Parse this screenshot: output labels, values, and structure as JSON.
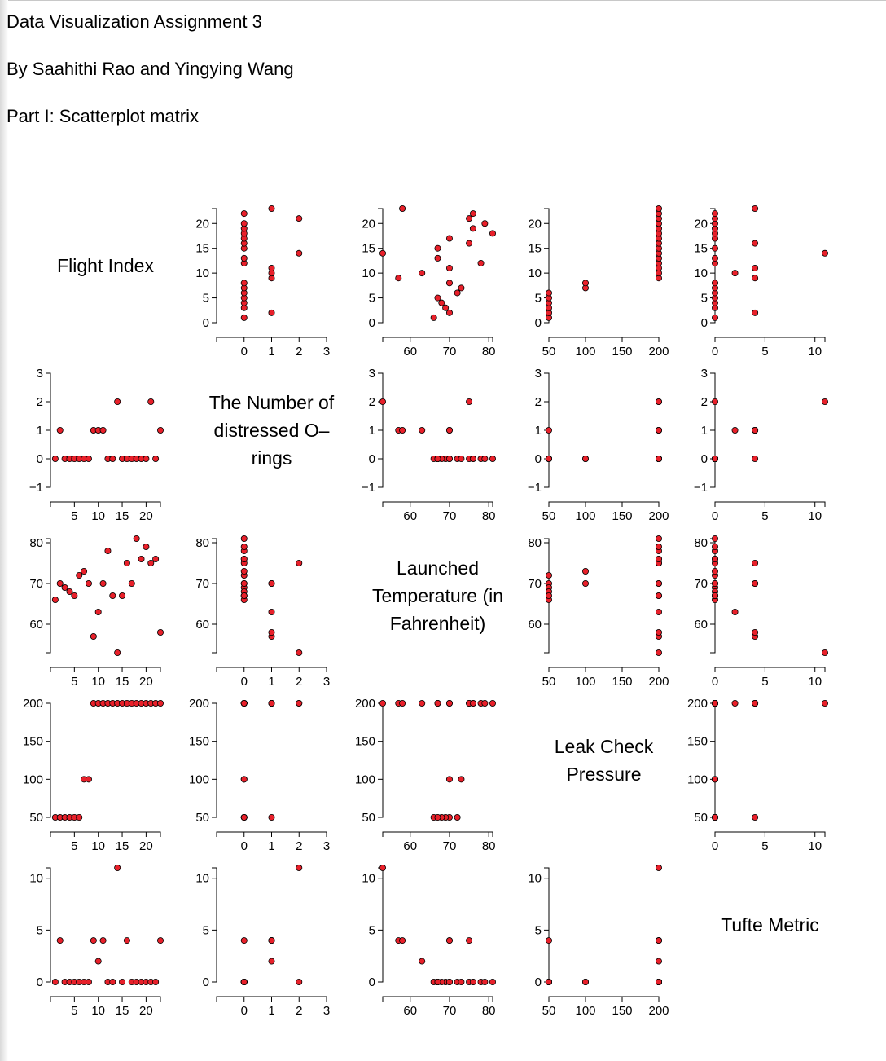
{
  "page": {
    "title": "Data Visualization Assignment 3",
    "authors": "By Saahithi Rao and Yingying Wang",
    "part": "Part I: Scatterplot matrix"
  },
  "chart_data": {
    "type": "scatter",
    "title": "",
    "marker_color": "#e8202a",
    "variables": [
      {
        "key": "flight",
        "label": "Flight Index",
        "label_lines": [
          "Flight Index"
        ],
        "domain": [
          0,
          23
        ],
        "ticks": [
          0,
          5,
          10,
          15,
          20
        ],
        "x_ticks": [
          5,
          10,
          15,
          20
        ]
      },
      {
        "key": "orings",
        "label": "The Number of distressed O-rings",
        "label_lines": [
          "The Number of",
          "distressed O–",
          "rings"
        ],
        "domain": [
          -1,
          3
        ],
        "ticks": [
          -1,
          0,
          1,
          2,
          3
        ],
        "x_ticks": [
          0,
          1,
          2,
          3
        ]
      },
      {
        "key": "temp",
        "label": "Launched Temperature (in Fahrenheit)",
        "label_lines": [
          "Launched",
          "Temperature (in",
          "Fahrenheit)"
        ],
        "domain": [
          53,
          81
        ],
        "ticks": [
          60,
          70,
          80
        ],
        "x_ticks": [
          60,
          70,
          80
        ]
      },
      {
        "key": "pressure",
        "label": "Leak Check Pressure",
        "label_lines": [
          "Leak Check",
          "Pressure"
        ],
        "domain": [
          50,
          200
        ],
        "ticks": [
          50,
          100,
          150,
          200
        ],
        "x_ticks": [
          50,
          100,
          150,
          200
        ]
      },
      {
        "key": "tufte",
        "label": "Tufte Metric",
        "label_lines": [
          "Tufte Metric"
        ],
        "domain": [
          0,
          11
        ],
        "ticks": [
          0,
          5,
          10
        ],
        "x_ticks": [
          0,
          5,
          10
        ]
      }
    ],
    "records": [
      {
        "flight": 1,
        "orings": 0,
        "temp": 66,
        "pressure": 50,
        "tufte": 0
      },
      {
        "flight": 2,
        "orings": 1,
        "temp": 70,
        "pressure": 50,
        "tufte": 4
      },
      {
        "flight": 3,
        "orings": 0,
        "temp": 69,
        "pressure": 50,
        "tufte": 0
      },
      {
        "flight": 4,
        "orings": 0,
        "temp": 68,
        "pressure": 50,
        "tufte": 0
      },
      {
        "flight": 5,
        "orings": 0,
        "temp": 67,
        "pressure": 50,
        "tufte": 0
      },
      {
        "flight": 6,
        "orings": 0,
        "temp": 72,
        "pressure": 50,
        "tufte": 0
      },
      {
        "flight": 7,
        "orings": 0,
        "temp": 73,
        "pressure": 100,
        "tufte": 0
      },
      {
        "flight": 8,
        "orings": 0,
        "temp": 70,
        "pressure": 100,
        "tufte": 0
      },
      {
        "flight": 9,
        "orings": 1,
        "temp": 57,
        "pressure": 200,
        "tufte": 4
      },
      {
        "flight": 10,
        "orings": 1,
        "temp": 63,
        "pressure": 200,
        "tufte": 2
      },
      {
        "flight": 11,
        "orings": 1,
        "temp": 70,
        "pressure": 200,
        "tufte": 4
      },
      {
        "flight": 12,
        "orings": 0,
        "temp": 78,
        "pressure": 200,
        "tufte": 0
      },
      {
        "flight": 13,
        "orings": 0,
        "temp": 67,
        "pressure": 200,
        "tufte": 0
      },
      {
        "flight": 14,
        "orings": 2,
        "temp": 53,
        "pressure": 200,
        "tufte": 11
      },
      {
        "flight": 15,
        "orings": 0,
        "temp": 67,
        "pressure": 200,
        "tufte": 0
      },
      {
        "flight": 16,
        "orings": 0,
        "temp": 75,
        "pressure": 200,
        "tufte": 4
      },
      {
        "flight": 17,
        "orings": 0,
        "temp": 70,
        "pressure": 200,
        "tufte": 0
      },
      {
        "flight": 18,
        "orings": 0,
        "temp": 81,
        "pressure": 200,
        "tufte": 0
      },
      {
        "flight": 19,
        "orings": 0,
        "temp": 76,
        "pressure": 200,
        "tufte": 0
      },
      {
        "flight": 20,
        "orings": 0,
        "temp": 79,
        "pressure": 200,
        "tufte": 0
      },
      {
        "flight": 21,
        "orings": 2,
        "temp": 75,
        "pressure": 200,
        "tufte": 0
      },
      {
        "flight": 22,
        "orings": 0,
        "temp": 76,
        "pressure": 200,
        "tufte": 0
      },
      {
        "flight": 23,
        "orings": 1,
        "temp": 58,
        "pressure": 200,
        "tufte": 4
      }
    ]
  }
}
